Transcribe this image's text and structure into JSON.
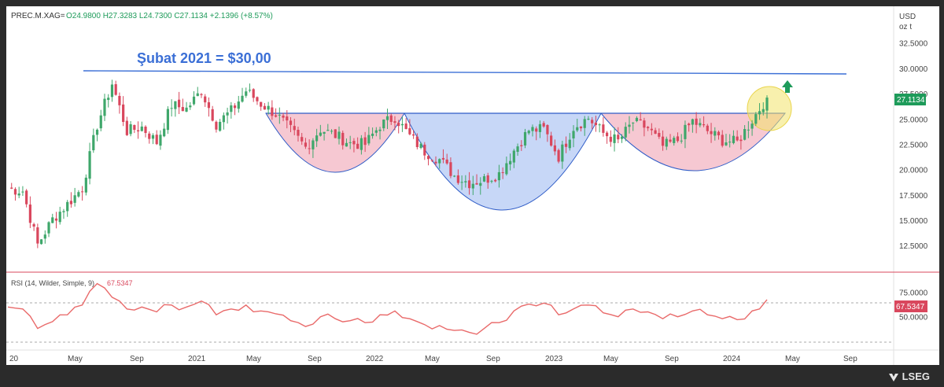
{
  "header": {
    "symbol": "PREC.M.XAG=",
    "ohlc_text": "O24.9800  H27.3283  L24.7300  C27.1134  +2.1396  (+8.57%)",
    "currency": "USD",
    "unit": "oz t"
  },
  "annotation": {
    "resistance_label": "Şubat 2021 = $30,00"
  },
  "rsi": {
    "label": "RSI (14, Wilder, Simple, 9)",
    "value_text": "67.5347",
    "badge_text": "67.5347"
  },
  "price_badge": "27.1134",
  "brand": "LSEG",
  "colors": {
    "up": "#3fa76b",
    "down": "#d9475d",
    "resistance": "#3b6fd6",
    "neckline": "#2f5cc7",
    "cup_pink": "#f6c8d2",
    "cup_blue": "#c7d7f7",
    "rsi_line": "#e96a6a",
    "highlight": "#f3e46a"
  },
  "chart_data": [
    {
      "type": "candlestick",
      "title": "",
      "x_tick_labels": [
        "20",
        "May",
        "Sep",
        "2021",
        "May",
        "Sep",
        "2022",
        "May",
        "Sep",
        "2023",
        "May",
        "Sep",
        "2024",
        "May",
        "Sep"
      ],
      "y_tick_labels": [
        "12.5000",
        "15.0000",
        "17.5000",
        "20.0000",
        "22.5000",
        "25.0000",
        "27.5000",
        "30.0000",
        "32.5000"
      ],
      "ylim": [
        10.5,
        33.8
      ],
      "last_close": 27.1134,
      "close_anchors": [
        {
          "date": "2020-01",
          "close": 18.1
        },
        {
          "date": "2020-02",
          "close": 17.9
        },
        {
          "date": "2020-03",
          "close": 12.6
        },
        {
          "date": "2020-04",
          "close": 15.1
        },
        {
          "date": "2020-05",
          "close": 16.6
        },
        {
          "date": "2020-06",
          "close": 18.2
        },
        {
          "date": "2020-07",
          "close": 24.4
        },
        {
          "date": "2020-08",
          "close": 28.5
        },
        {
          "date": "2020-09",
          "close": 23.8
        },
        {
          "date": "2020-10",
          "close": 24.2
        },
        {
          "date": "2020-11",
          "close": 22.7
        },
        {
          "date": "2020-12",
          "close": 26.4
        },
        {
          "date": "2021-01",
          "close": 26.0
        },
        {
          "date": "2021-02",
          "close": 27.8
        },
        {
          "date": "2021-03",
          "close": 24.5
        },
        {
          "date": "2021-04",
          "close": 25.8
        },
        {
          "date": "2021-05",
          "close": 27.8
        },
        {
          "date": "2021-06",
          "close": 26.5
        },
        {
          "date": "2021-07",
          "close": 25.5
        },
        {
          "date": "2021-08",
          "close": 23.9
        },
        {
          "date": "2021-09",
          "close": 22.2
        },
        {
          "date": "2021-10",
          "close": 24.0
        },
        {
          "date": "2021-11",
          "close": 23.4
        },
        {
          "date": "2021-12",
          "close": 22.6
        },
        {
          "date": "2022-01",
          "close": 22.5
        },
        {
          "date": "2022-02",
          "close": 24.4
        },
        {
          "date": "2022-03",
          "close": 25.2
        },
        {
          "date": "2022-04",
          "close": 23.3
        },
        {
          "date": "2022-05",
          "close": 21.8
        },
        {
          "date": "2022-06",
          "close": 21.0
        },
        {
          "date": "2022-07",
          "close": 19.4
        },
        {
          "date": "2022-08",
          "close": 18.7
        },
        {
          "date": "2022-09",
          "close": 19.0
        },
        {
          "date": "2022-10",
          "close": 19.6
        },
        {
          "date": "2022-11",
          "close": 21.9
        },
        {
          "date": "2022-12",
          "close": 23.9
        },
        {
          "date": "2023-01",
          "close": 24.0
        },
        {
          "date": "2023-02",
          "close": 21.3
        },
        {
          "date": "2023-03",
          "close": 24.2
        },
        {
          "date": "2023-04",
          "close": 25.1
        },
        {
          "date": "2023-05",
          "close": 23.6
        },
        {
          "date": "2023-06",
          "close": 22.8
        },
        {
          "date": "2023-07",
          "close": 24.7
        },
        {
          "date": "2023-08",
          "close": 24.1
        },
        {
          "date": "2023-09",
          "close": 22.3
        },
        {
          "date": "2023-10",
          "close": 22.9
        },
        {
          "date": "2023-11",
          "close": 24.8
        },
        {
          "date": "2023-12",
          "close": 23.8
        },
        {
          "date": "2024-01",
          "close": 22.9
        },
        {
          "date": "2024-02",
          "close": 22.7
        },
        {
          "date": "2024-03",
          "close": 24.9
        },
        {
          "date": "2024-04",
          "close": 27.1
        }
      ],
      "resistance_level": 30.0,
      "neckline_level": 26.1
    },
    {
      "type": "line",
      "title": "",
      "series": [
        {
          "name": "",
          "values": [
            60,
            58,
            38,
            45,
            52,
            62,
            84,
            70,
            58,
            60,
            55,
            62,
            60,
            66,
            52,
            58,
            62,
            56,
            53,
            46,
            40,
            50,
            48,
            46,
            44,
            52,
            56,
            48,
            42,
            41,
            36,
            34,
            38,
            44,
            56,
            63,
            64,
            52,
            58,
            62,
            54,
            50,
            58,
            55,
            48,
            50,
            56,
            52,
            48,
            47,
            56,
            67.5347
          ]
        }
      ],
      "y_tick_labels": [
        "50.0000",
        "75.0000"
      ],
      "ylim": [
        20,
        90
      ],
      "reference_lines": [
        70,
        30
      ]
    }
  ]
}
